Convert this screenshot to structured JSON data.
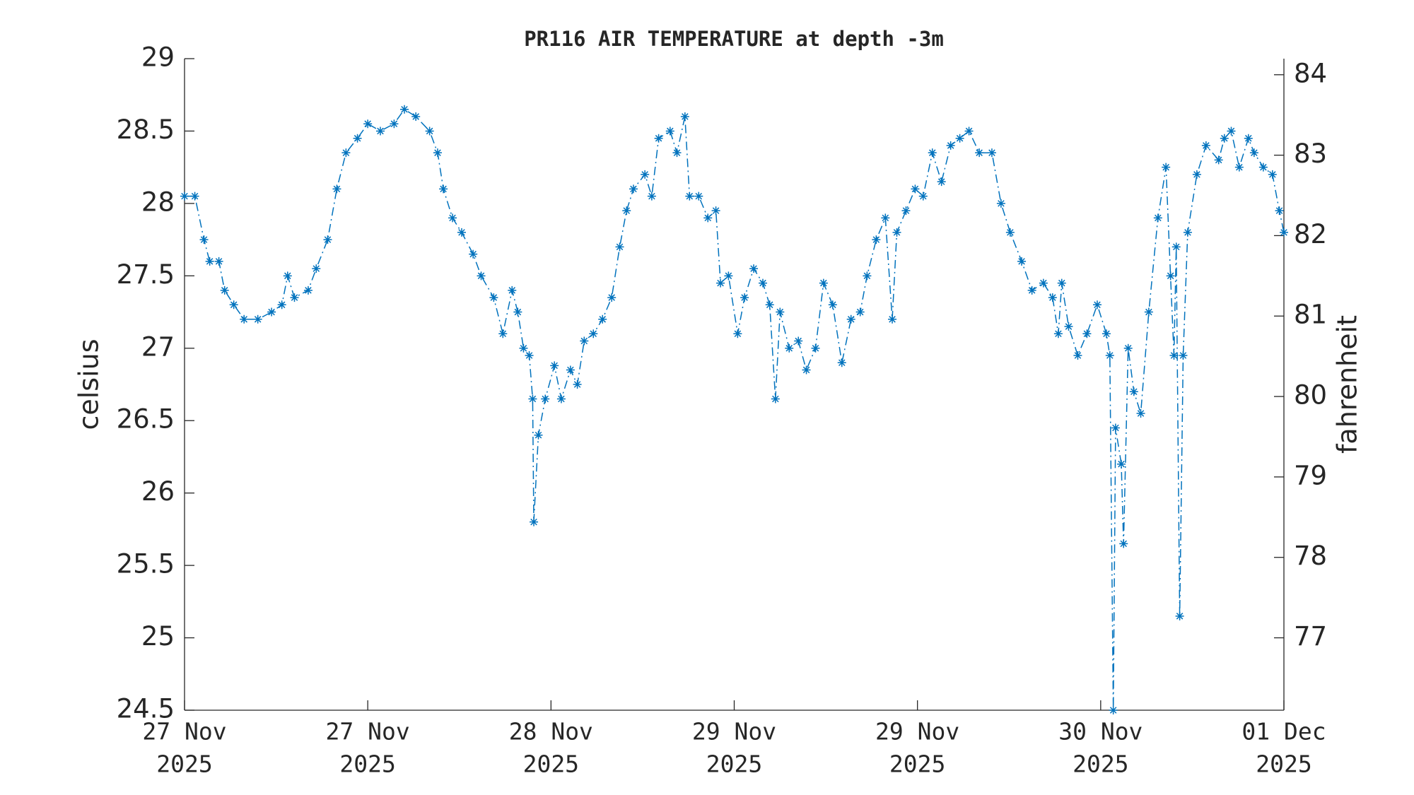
{
  "chart_data": {
    "type": "line",
    "title": "PR116 AIR TEMPERATURE at depth -3m",
    "ylabel": "celsius",
    "y2label": "fahrenheit",
    "xlim": [
      0,
      96
    ],
    "xticks": [
      {
        "value": 0,
        "label": [
          "27 Nov",
          "2025"
        ]
      },
      {
        "value": 16,
        "label": [
          "27 Nov",
          "2025"
        ]
      },
      {
        "value": 32,
        "label": [
          "28 Nov",
          "2025"
        ]
      },
      {
        "value": 48,
        "label": [
          "29 Nov",
          "2025"
        ]
      },
      {
        "value": 64,
        "label": [
          "29 Nov",
          "2025"
        ]
      },
      {
        "value": 80,
        "label": [
          "30 Nov",
          "2025"
        ]
      },
      {
        "value": 96,
        "label": [
          "01 Dec",
          "2025"
        ]
      }
    ],
    "ylim": [
      24.5,
      29
    ],
    "yticks": [
      24.5,
      25,
      25.5,
      26,
      26.5,
      27,
      27.5,
      28,
      28.5,
      29
    ],
    "y2lim": [
      76.1,
      84.2
    ],
    "y2ticks": [
      77,
      78,
      79,
      80,
      81,
      82,
      83,
      84
    ],
    "marker": "asterisk",
    "line_style": "dash-dot",
    "series": [
      {
        "color": "#0072bd",
        "x": [
          0,
          0.9,
          1.7,
          2.2,
          3.0,
          3.5,
          4.3,
          5.2,
          6.4,
          7.6,
          8.5,
          9.0,
          9.6,
          10.8,
          11.5,
          12.5,
          13.3,
          14.1,
          15.1,
          16.0,
          17.1,
          18.3,
          19.2,
          20.2,
          21.4,
          22.1,
          22.6,
          23.4,
          24.2,
          25.2,
          25.9,
          27.0,
          27.8,
          28.6,
          29.1,
          29.6,
          30.1,
          30.4,
          30.5,
          30.9,
          31.5,
          32.3,
          32.9,
          33.7,
          34.3,
          34.9,
          35.7,
          36.5,
          37.3,
          38.0,
          38.6,
          39.2,
          40.2,
          40.8,
          41.4,
          42.4,
          43.0,
          43.7,
          44.1,
          44.9,
          45.7,
          46.4,
          46.8,
          47.5,
          48.3,
          48.9,
          49.7,
          50.5,
          51.1,
          51.6,
          52.0,
          52.8,
          53.6,
          54.3,
          55.1,
          55.8,
          56.6,
          57.4,
          58.2,
          59.0,
          59.6,
          60.4,
          61.2,
          61.8,
          62.2,
          63.0,
          63.8,
          64.5,
          65.3,
          66.1,
          66.9,
          67.7,
          68.5,
          69.4,
          70.5,
          71.3,
          72.1,
          73.1,
          74.0,
          75.0,
          75.8,
          76.3,
          76.6,
          77.2,
          78.0,
          78.8,
          79.7,
          80.5,
          80.8,
          81.1,
          81.3,
          81.8,
          82.0,
          82.4,
          82.9,
          83.5,
          84.2,
          85.0,
          85.7,
          86.1,
          86.4,
          86.6,
          86.9,
          87.2,
          87.6,
          88.4,
          89.2,
          90.3,
          90.8,
          91.4,
          92.1,
          92.9,
          93.4,
          94.2,
          95.0,
          95.6,
          96.0
        ],
        "values": [
          28.05,
          28.05,
          27.75,
          27.6,
          27.6,
          27.4,
          27.3,
          27.2,
          27.2,
          27.25,
          27.3,
          27.5,
          27.35,
          27.4,
          27.55,
          27.75,
          28.1,
          28.35,
          28.45,
          28.55,
          28.5,
          28.55,
          28.65,
          28.6,
          28.5,
          28.35,
          28.1,
          27.9,
          27.8,
          27.65,
          27.5,
          27.35,
          27.1,
          27.4,
          27.25,
          27.0,
          26.95,
          26.65,
          25.8,
          26.4,
          26.65,
          26.88,
          26.65,
          26.85,
          26.75,
          27.05,
          27.1,
          27.2,
          27.35,
          27.7,
          27.95,
          28.1,
          28.2,
          28.05,
          28.45,
          28.5,
          28.35,
          28.6,
          28.05,
          28.05,
          27.9,
          27.95,
          27.45,
          27.5,
          27.1,
          27.35,
          27.55,
          27.45,
          27.3,
          26.65,
          27.25,
          27.0,
          27.05,
          26.85,
          27.0,
          27.45,
          27.3,
          26.9,
          27.2,
          27.25,
          27.5,
          27.75,
          27.9,
          27.2,
          27.8,
          27.95,
          28.1,
          28.05,
          28.35,
          28.15,
          28.4,
          28.45,
          28.5,
          28.35,
          28.35,
          28.0,
          27.8,
          27.6,
          27.4,
          27.45,
          27.35,
          27.1,
          27.45,
          27.15,
          26.95,
          27.1,
          27.3,
          27.1,
          26.95,
          24.5,
          26.45,
          26.2,
          25.65,
          27.0,
          26.7,
          26.55,
          27.25,
          27.9,
          28.25,
          27.5,
          26.95,
          27.7,
          25.15,
          26.95,
          27.8,
          28.2,
          28.4,
          28.3,
          28.45,
          28.5,
          28.25,
          28.45,
          28.35,
          28.25,
          28.2,
          27.95,
          27.8
        ]
      }
    ]
  }
}
